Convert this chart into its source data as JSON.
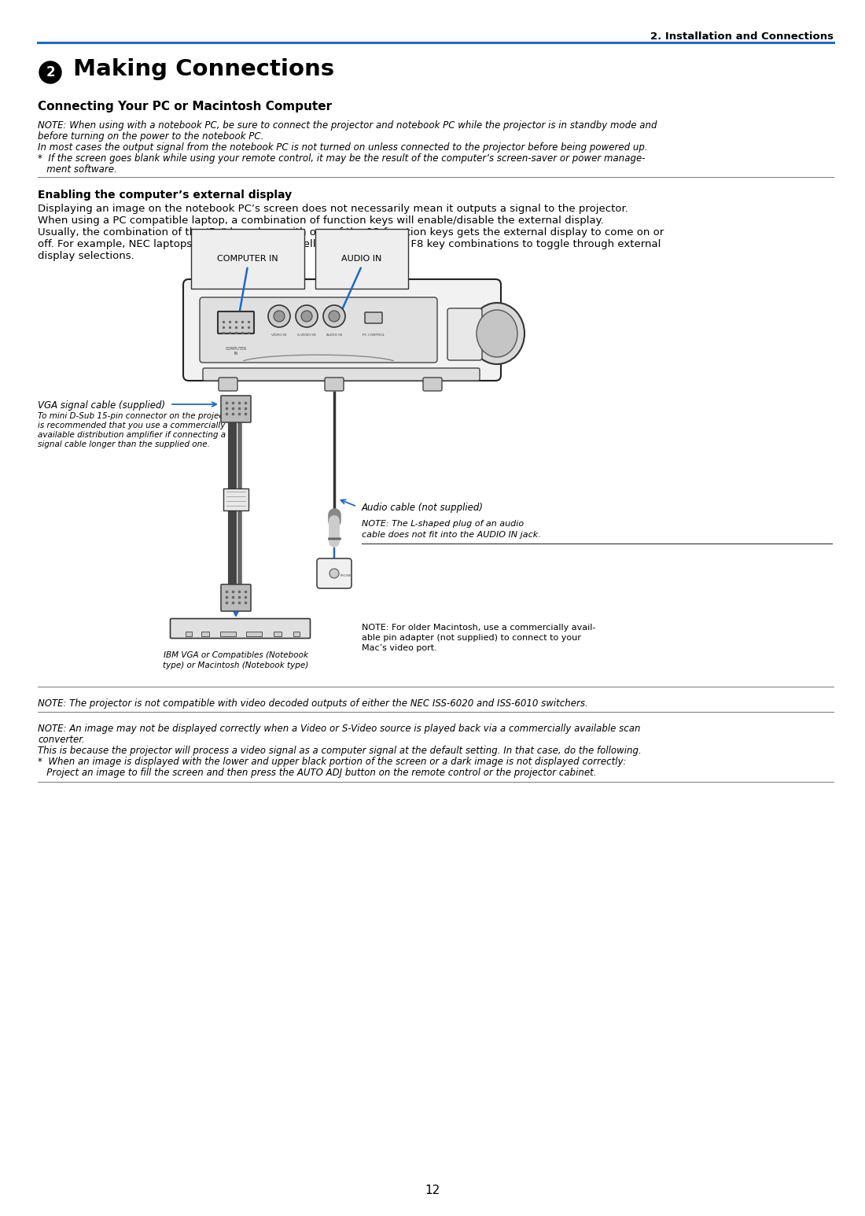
{
  "page_number": "12",
  "header_text": "2. Installation and Connections",
  "section_number": "2",
  "section_title": " Making Connections",
  "subsection_title": "Connecting Your PC or Macintosh Computer",
  "note_block": [
    "NOTE: When using with a notebook PC, be sure to connect the projector and notebook PC while the projector is in standby mode and",
    "before turning on the power to the notebook PC.",
    "In most cases the output signal from the notebook PC is not turned on unless connected to the projector before being powered up.",
    "*  If the screen goes blank while using your remote control, it may be the result of the computer’s screen-saver or power manage-",
    "   ment software."
  ],
  "enabling_title": "Enabling the computer’s external display",
  "enabling_body": [
    "Displaying an image on the notebook PC’s screen does not necessarily mean it outputs a signal to the projector.",
    "When using a PC compatible laptop, a combination of function keys will enable/disable the external display.",
    "Usually, the combination of the ‘Fn” key along with one of the 12 function keys gets the external display to come on or",
    "off. For example, NEC laptops use Fn + F3, while Dell laptops use Fn + F8 key combinations to toggle through external",
    "display selections."
  ],
  "vga_label": "VGA signal cable (supplied)",
  "vga_desc": [
    "To mini D-Sub 15-pin connector on the projector. It",
    "is recommended that you use a commercially",
    "available distribution amplifier if connecting a",
    "signal cable longer than the supplied one."
  ],
  "audio_label": "Audio cable (not supplied)",
  "audio_note_line1": "NOTE: The L-shaped plug of an audio",
  "audio_note_line2": "cable does not fit into the AUDIO IN jack.",
  "ibm_label_line1": "IBM VGA or Compatibles (Notebook",
  "ibm_label_line2": "type) or Macintosh (Notebook type)",
  "mac_note_line1": "NOTE: For older Macintosh, use a commercially avail-",
  "mac_note_line2": "able pin adapter (not supplied) to connect to your",
  "mac_note_line3": "Mac’s video port.",
  "bottom_note1": "NOTE: The projector is not compatible with video decoded outputs of either the NEC ISS-6020 and ISS-6010 switchers.",
  "bottom_note2": "NOTE: An image may not be displayed correctly when a Video or S-Video source is played back via a commercially available scan",
  "bottom_note2b": "converter.",
  "bottom_note3": "This is because the projector will process a video signal as a computer signal at the default setting. In that case, do the following.",
  "bottom_note4": "*  When an image is displayed with the lower and upper black portion of the screen or a dark image is not displayed correctly:",
  "bottom_note5": "   Project an image to fill the screen and then press the AUTO ADJ button on the remote control or the projector cabinet.",
  "bg_color": "#ffffff",
  "text_color": "#000000",
  "blue_color": "#1a6acd",
  "label_box_color": "#e8e8e8"
}
